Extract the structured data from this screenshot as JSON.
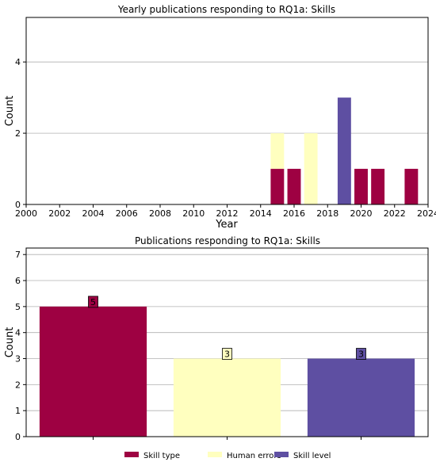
{
  "chart_data": [
    {
      "type": "bar",
      "stacked": true,
      "title": "Yearly publications responding to RQ1a: Skills",
      "xlabel": "Year",
      "ylabel": "Count",
      "xlim": [
        2000,
        2024
      ],
      "ylim": [
        0,
        5.25
      ],
      "xticks": [
        2000,
        2002,
        2004,
        2006,
        2008,
        2010,
        2012,
        2014,
        2016,
        2018,
        2020,
        2022,
        2024
      ],
      "yticks": [
        0,
        2,
        4
      ],
      "grid": "y",
      "x": [
        2015,
        2016,
        2017,
        2019,
        2020,
        2021,
        2023
      ],
      "series": [
        {
          "category": "Skill type",
          "color": "#9e0142",
          "values": [
            1,
            1,
            0,
            0,
            1,
            1,
            1
          ]
        },
        {
          "category": "Human errors",
          "color": "#ffffbf",
          "values": [
            1,
            0,
            2,
            0,
            0,
            0,
            0
          ]
        },
        {
          "category": "Skill level",
          "color": "#5e4fa2",
          "values": [
            0,
            0,
            0,
            3,
            0,
            0,
            0
          ]
        }
      ]
    },
    {
      "type": "bar",
      "title": "Publications responding to RQ1a: Skills",
      "xlabel": "",
      "ylabel": "Count",
      "ylim": [
        0,
        7.25
      ],
      "yticks": [
        0,
        1,
        2,
        3,
        4,
        5,
        6,
        7
      ],
      "grid": "y",
      "categories": [
        "Skill type",
        "Human errors",
        "Skill level"
      ],
      "values": [
        5,
        3,
        3
      ],
      "colors": [
        "#9e0142",
        "#ffffbf",
        "#5e4fa2"
      ],
      "data_labels": [
        "5",
        "3",
        "3"
      ],
      "legend": {
        "placement": "bottom-center",
        "entries": [
          {
            "label": "Skill type",
            "color": "#9e0142"
          },
          {
            "label": "Human errors",
            "color": "#ffffbf"
          },
          {
            "label": "Skill level",
            "color": "#5e4fa2"
          }
        ]
      }
    }
  ]
}
